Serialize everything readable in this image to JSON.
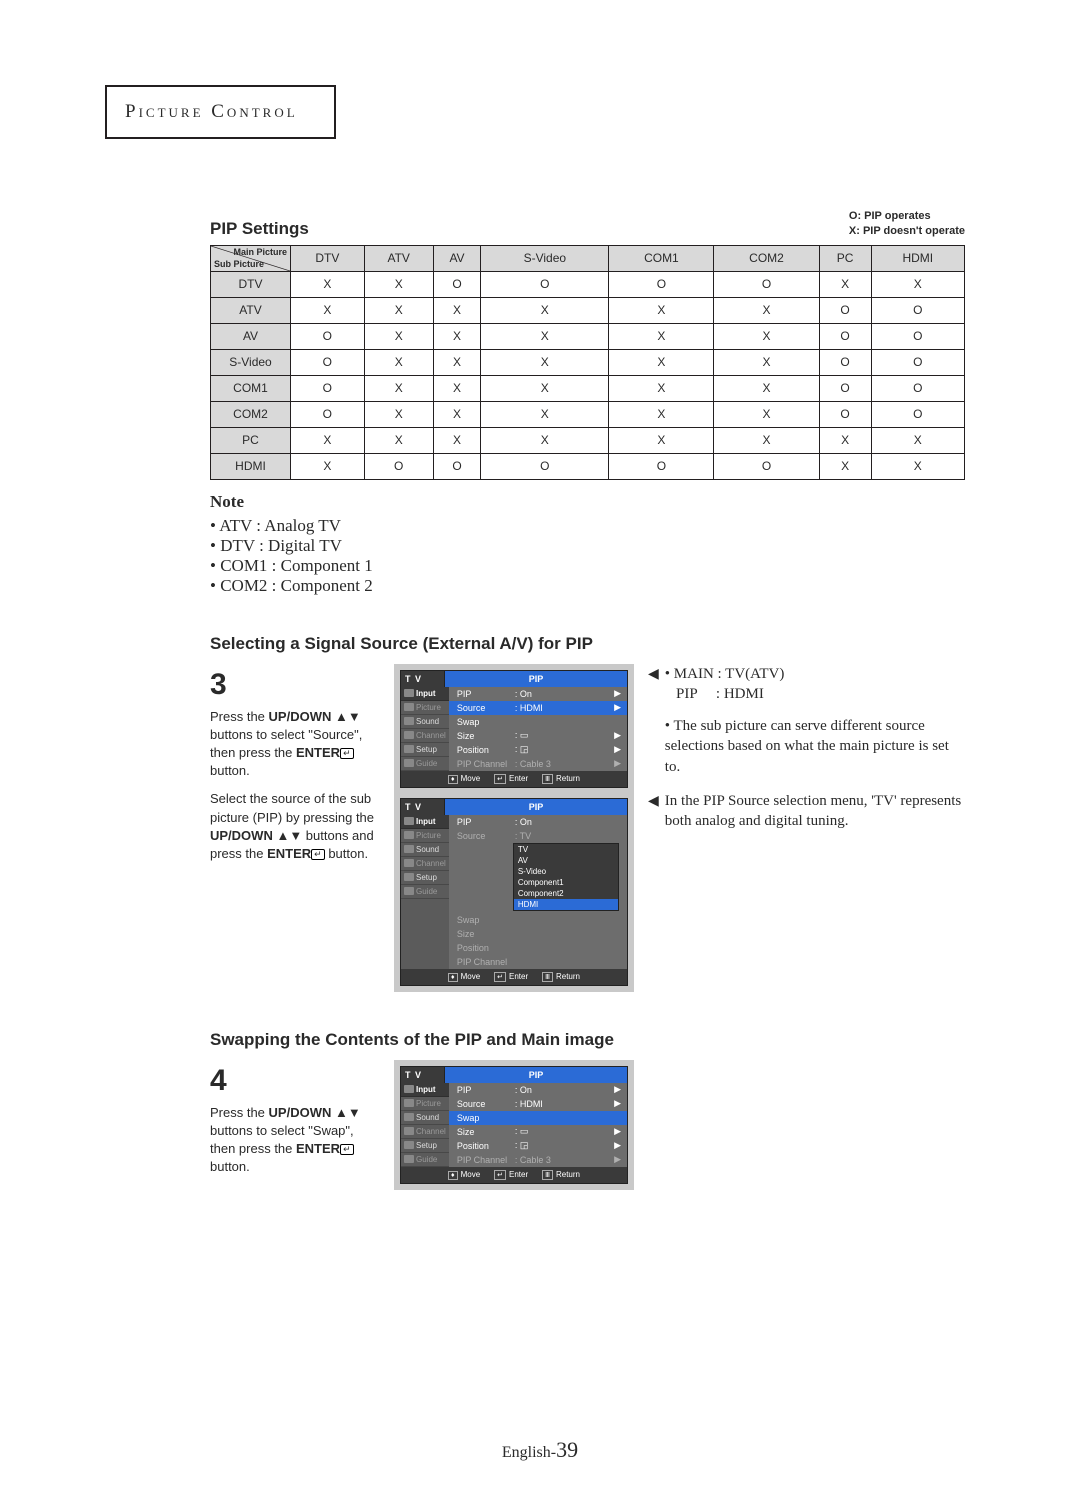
{
  "header": {
    "title": "Picture Control"
  },
  "pip": {
    "heading": "PIP Settings",
    "legend": {
      "o": "O: PIP operates",
      "x": "X: PIP doesn't operate"
    },
    "corner": {
      "main": "Main Picture",
      "sub": "Sub Picture"
    },
    "cols": [
      "DTV",
      "ATV",
      "AV",
      "S-Video",
      "COM1",
      "COM2",
      "PC",
      "HDMI"
    ],
    "rows": [
      {
        "label": "DTV",
        "cells": [
          "X",
          "X",
          "O",
          "O",
          "O",
          "O",
          "X",
          "X"
        ]
      },
      {
        "label": "ATV",
        "cells": [
          "X",
          "X",
          "X",
          "X",
          "X",
          "X",
          "O",
          "O"
        ]
      },
      {
        "label": "AV",
        "cells": [
          "O",
          "X",
          "X",
          "X",
          "X",
          "X",
          "O",
          "O"
        ]
      },
      {
        "label": "S-Video",
        "cells": [
          "O",
          "X",
          "X",
          "X",
          "X",
          "X",
          "O",
          "O"
        ]
      },
      {
        "label": "COM1",
        "cells": [
          "O",
          "X",
          "X",
          "X",
          "X",
          "X",
          "O",
          "O"
        ]
      },
      {
        "label": "COM2",
        "cells": [
          "O",
          "X",
          "X",
          "X",
          "X",
          "X",
          "O",
          "O"
        ]
      },
      {
        "label": "PC",
        "cells": [
          "X",
          "X",
          "X",
          "X",
          "X",
          "X",
          "X",
          "X"
        ]
      },
      {
        "label": "HDMI",
        "cells": [
          "X",
          "O",
          "O",
          "O",
          "O",
          "O",
          "X",
          "X"
        ]
      }
    ]
  },
  "note": {
    "title": "Note",
    "items": [
      "ATV : Analog TV",
      "DTV : Digital TV",
      "COM1 : Component 1",
      "COM2 : Component 2"
    ]
  },
  "sec3": {
    "heading": "Selecting a Signal Source (External A/V) for PIP",
    "num": "3",
    "para1a": "Press the ",
    "para1b_bold": "UP/DOWN",
    "para1c": " ▲▼ buttons to select \"Source\", then press the ",
    "para1d_bold": "ENTER",
    "para1e": " button.",
    "para2a": "Select the source of the sub picture (PIP) by pressing the ",
    "para2b_bold": "UP/DOWN",
    "para2c": " ▲▼  buttons and press the ",
    "para2d_bold": "ENTER",
    "para2e": " button.",
    "side1": {
      "l1": "• MAIN : TV(ATV)",
      "l2": "   PIP     : HDMI",
      "l3": "• The sub picture can serve different source selections based on what the main picture is set to."
    },
    "side2": "In the PIP Source selection menu, 'TV' represents both analog and digital tuning."
  },
  "sec4": {
    "heading": "Swapping the Contents of the PIP and Main image",
    "num": "4",
    "para1a": "Press the ",
    "para1b_bold": "UP/DOWN",
    "para1c": " ▲▼ buttons to select \"Swap\", then press the ",
    "para1d_bold": "ENTER",
    "para1e": " button."
  },
  "osd": {
    "tv": "T V",
    "title": "PIP",
    "sidebar": [
      "Input",
      "Picture",
      "Sound",
      "Channel",
      "Setup",
      "Guide"
    ],
    "panel1_rows": [
      {
        "k": "PIP",
        "v": ": On",
        "ar": "▶",
        "cls": ""
      },
      {
        "k": "Source",
        "v": ": HDMI",
        "ar": "▶",
        "cls": "hl"
      },
      {
        "k": "Swap",
        "v": "",
        "ar": "",
        "cls": ""
      },
      {
        "k": "Size",
        "v": ": ▭",
        "ar": "▶",
        "cls": ""
      },
      {
        "k": "Position",
        "v": ": ◲",
        "ar": "▶",
        "cls": ""
      },
      {
        "k": "PIP Channel",
        "v": ": Cable 3",
        "ar": "▶",
        "cls": "dim"
      }
    ],
    "panel2_rows": [
      {
        "k": "PIP",
        "v": ": On",
        "ar": "",
        "cls": ""
      },
      {
        "k": "Source",
        "v": ": TV",
        "ar": "",
        "cls": "dim"
      },
      {
        "k": "Swap",
        "v": "",
        "ar": "",
        "cls": "dim"
      },
      {
        "k": "Size",
        "v": "",
        "ar": "",
        "cls": "dim"
      },
      {
        "k": "Position",
        "v": "",
        "ar": "",
        "cls": "dim"
      },
      {
        "k": "PIP Channel",
        "v": "",
        "ar": "",
        "cls": "dim"
      }
    ],
    "dropdown": [
      "TV",
      "AV",
      "S-Video",
      "Component1",
      "Component2",
      "HDMI"
    ],
    "dropdown_sel": "HDMI",
    "panel3_rows": [
      {
        "k": "PIP",
        "v": ": On",
        "ar": "▶",
        "cls": ""
      },
      {
        "k": "Source",
        "v": ": HDMI",
        "ar": "▶",
        "cls": ""
      },
      {
        "k": "Swap",
        "v": "",
        "ar": "",
        "cls": "hl"
      },
      {
        "k": "Size",
        "v": ": ▭",
        "ar": "▶",
        "cls": ""
      },
      {
        "k": "Position",
        "v": ": ◲",
        "ar": "▶",
        "cls": ""
      },
      {
        "k": "PIP Channel",
        "v": ": Cable 3",
        "ar": "▶",
        "cls": "dim"
      }
    ],
    "footer": {
      "move": "Move",
      "enter": "Enter",
      "ret": "Return"
    }
  },
  "footer": {
    "lang": "English-",
    "page": "39"
  }
}
